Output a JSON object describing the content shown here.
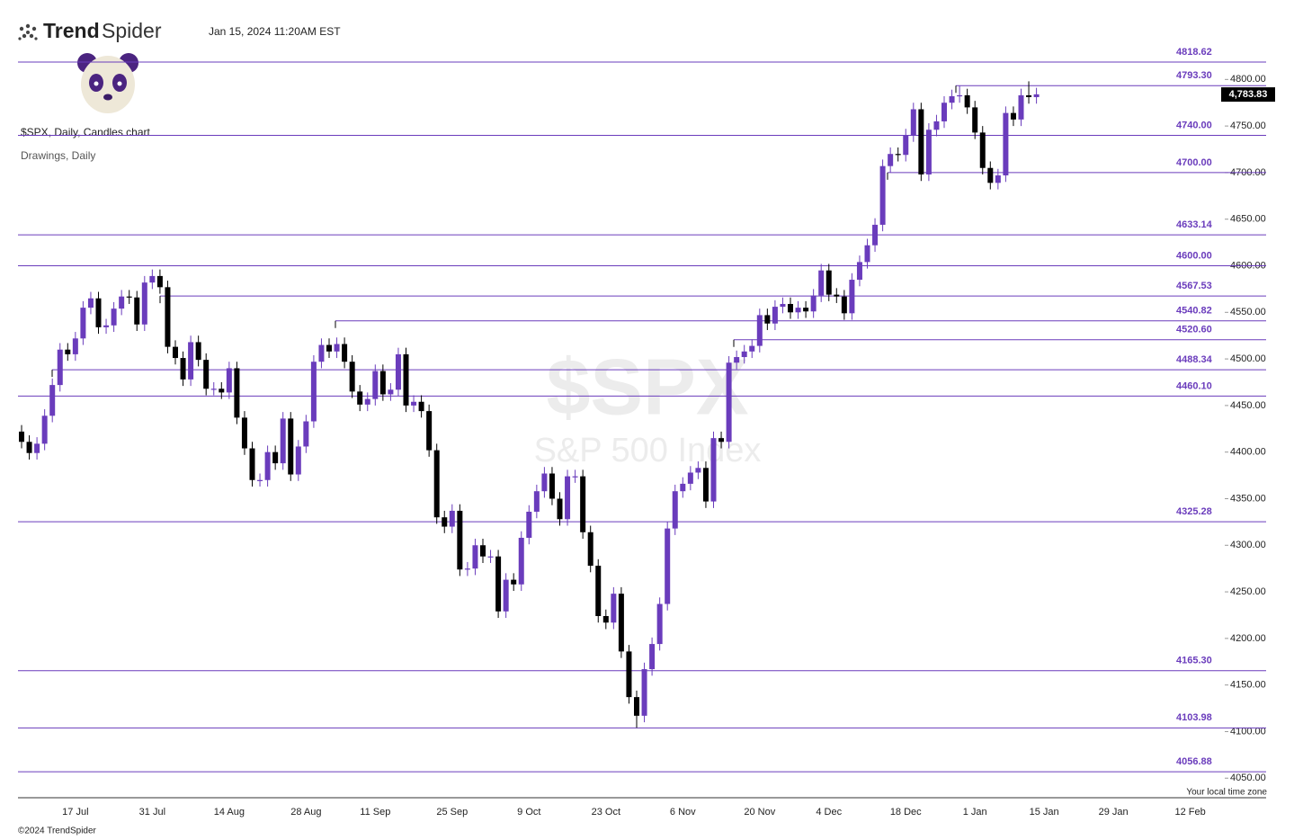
{
  "header": {
    "logo_bold": "Trend",
    "logo_light": "Spider",
    "timestamp": "Jan 15, 2024 11:20AM EST"
  },
  "chart_data": {
    "type": "candlestick",
    "title": "$SPX, Daily, Candles chart",
    "subtitle": "Drawings, Daily",
    "watermark_symbol": "$SPX",
    "watermark_name": "S&P 500 Index",
    "timezone_note": "Your local time zone",
    "up_color": "#6a3cbc",
    "down_color": "#000000",
    "level_color": "#6a3cbc",
    "categories": [
      null,
      null,
      null,
      null,
      null,
      null,
      null,
      "17 Jul",
      null,
      null,
      null,
      null,
      null,
      null,
      null,
      null,
      null,
      "31 Jul",
      null,
      null,
      null,
      null,
      null,
      null,
      null,
      null,
      null,
      "14 Aug",
      null,
      null,
      null,
      null,
      null,
      null,
      null,
      null,
      null,
      "28 Aug",
      null,
      null,
      null,
      null,
      null,
      null,
      null,
      null,
      "11 Sep",
      null,
      null,
      null,
      null,
      null,
      null,
      null,
      null,
      null,
      "25 Sep",
      null,
      null,
      null,
      null,
      null,
      null,
      null,
      null,
      null,
      "9 Oct",
      null,
      null,
      null,
      null,
      null,
      null,
      null,
      null,
      null,
      "23 Oct",
      null,
      null,
      null,
      null,
      null,
      null,
      null,
      null,
      null,
      "6 Nov",
      null,
      null,
      null,
      null,
      null,
      null,
      null,
      null,
      null,
      "20 Nov",
      null,
      null,
      null,
      null,
      null,
      null,
      null,
      null,
      "4 Dec",
      null,
      null,
      null,
      null,
      null,
      null,
      null,
      null,
      null,
      "18 Dec",
      null,
      null,
      null,
      null,
      null,
      null,
      null,
      null,
      "1 Jan",
      null,
      null,
      null,
      null,
      null,
      null,
      null,
      null,
      "15 Jan",
      null,
      null,
      null,
      null,
      null,
      null,
      null,
      null,
      "29 Jan",
      null,
      null,
      null,
      null,
      null,
      null,
      null,
      null,
      null,
      "12 Feb",
      null,
      null,
      null,
      null,
      null
    ],
    "open": [
      4422,
      4411,
      4399,
      4409,
      4439,
      4472,
      4510,
      4505,
      4522,
      4555,
      4565,
      4534,
      4536,
      4554,
      4567,
      4566,
      4537,
      4582,
      4589,
      4577,
      4513,
      4501,
      4478,
      4518,
      4499,
      4468,
      4468,
      4464,
      4490,
      4437,
      4404,
      4370,
      4370,
      4400,
      4388,
      4436,
      4376,
      4406,
      4433,
      4497,
      4515,
      4508,
      4516,
      4497,
      4465,
      4451,
      4457,
      4487,
      4462,
      4467,
      4505,
      4450,
      4454,
      4444,
      4402,
      4330,
      4320,
      4337,
      4274,
      4275,
      4300,
      4288,
      4288,
      4229,
      4263,
      4258,
      4308,
      4336,
      4358,
      4377,
      4350,
      4328,
      4374,
      4374,
      4314,
      4278,
      4224,
      4217,
      4248,
      4186,
      4137,
      4117,
      4167,
      4194,
      4237,
      4318,
      4358,
      4366,
      4378,
      4383,
      4347,
      4415,
      4411,
      4496,
      4502,
      4508,
      4514,
      4547,
      4538,
      4556,
      4559,
      4550,
      4555,
      4551,
      4568,
      4595,
      4569,
      4567,
      4549,
      4585,
      4604,
      4622,
      4644,
      4707,
      4720,
      4719,
      4740,
      4768,
      4698,
      4746,
      4755,
      4775,
      4782,
      4783,
      4770,
      4743,
      4705,
      4689,
      4697,
      4764,
      4757,
      4783,
      4781,
      null,
      null,
      null,
      null,
      null,
      null,
      null,
      null,
      null,
      null,
      null,
      null,
      null,
      null,
      null,
      null,
      null,
      null,
      null,
      null,
      null,
      null,
      null,
      null,
      null
    ],
    "high": [
      4429,
      4418,
      4416,
      4446,
      4479,
      4517,
      4517,
      4529,
      4562,
      4572,
      4572,
      4543,
      4561,
      4574,
      4574,
      4573,
      4589,
      4596,
      4596,
      4584,
      4520,
      4508,
      4525,
      4525,
      4506,
      4475,
      4475,
      4497,
      4497,
      4444,
      4411,
      4377,
      4407,
      4407,
      4443,
      4443,
      4413,
      4440,
      4504,
      4522,
      4522,
      4523,
      4523,
      4504,
      4472,
      4464,
      4494,
      4494,
      4474,
      4512,
      4512,
      4461,
      4461,
      4451,
      4409,
      4337,
      4344,
      4344,
      4282,
      4307,
      4307,
      4295,
      4295,
      4270,
      4270,
      4315,
      4343,
      4365,
      4384,
      4384,
      4357,
      4381,
      4381,
      4381,
      4321,
      4285,
      4231,
      4255,
      4255,
      4193,
      4144,
      4174,
      4201,
      4244,
      4325,
      4365,
      4373,
      4385,
      4390,
      4390,
      4422,
      4422,
      4503,
      4509,
      4515,
      4521,
      4554,
      4554,
      4563,
      4566,
      4566,
      4562,
      4562,
      4575,
      4602,
      4602,
      4576,
      4574,
      4592,
      4611,
      4629,
      4651,
      4714,
      4727,
      4727,
      4747,
      4775,
      4775,
      4753,
      4762,
      4782,
      4789,
      4793,
      4790,
      4777,
      4750,
      4712,
      4704,
      4771,
      4771,
      4790,
      4798,
      4791,
      null,
      null,
      null,
      null,
      null,
      null,
      null,
      null,
      null,
      null,
      null,
      null,
      null,
      null,
      null,
      null,
      null,
      null,
      null,
      null,
      null,
      null,
      null,
      null,
      null
    ],
    "low": [
      4404,
      4392,
      4392,
      4402,
      4432,
      4465,
      4498,
      4498,
      4515,
      4548,
      4527,
      4527,
      4529,
      4547,
      4559,
      4530,
      4530,
      4575,
      4570,
      4506,
      4494,
      4471,
      4471,
      4492,
      4461,
      4461,
      4457,
      4457,
      4430,
      4397,
      4363,
      4363,
      4363,
      4381,
      4381,
      4369,
      4369,
      4399,
      4426,
      4490,
      4501,
      4501,
      4490,
      4458,
      4444,
      4444,
      4450,
      4455,
      4455,
      4460,
      4443,
      4443,
      4437,
      4395,
      4323,
      4313,
      4313,
      4267,
      4267,
      4268,
      4281,
      4281,
      4222,
      4222,
      4251,
      4251,
      4301,
      4329,
      4351,
      4343,
      4321,
      4321,
      4367,
      4307,
      4271,
      4217,
      4210,
      4210,
      4179,
      4130,
      4104,
      4110,
      4160,
      4187,
      4230,
      4311,
      4351,
      4359,
      4371,
      4340,
      4340,
      4404,
      4404,
      4489,
      4495,
      4501,
      4507,
      4531,
      4531,
      4549,
      4543,
      4543,
      4544,
      4544,
      4561,
      4562,
      4560,
      4542,
      4542,
      4578,
      4597,
      4615,
      4637,
      4700,
      4712,
      4712,
      4733,
      4691,
      4691,
      4739,
      4748,
      4768,
      4775,
      4763,
      4736,
      4698,
      4682,
      4682,
      4690,
      4750,
      4750,
      4774,
      4774,
      null,
      null,
      null,
      null,
      null,
      null,
      null,
      null,
      null,
      null,
      null,
      null,
      null,
      null,
      null,
      null,
      null,
      null,
      null,
      null,
      null,
      null,
      null,
      null,
      null
    ],
    "close": [
      4411,
      4399,
      4409,
      4439,
      4472,
      4510,
      4505,
      4522,
      4555,
      4565,
      4534,
      4536,
      4554,
      4567,
      4566,
      4537,
      4582,
      4589,
      4577,
      4513,
      4501,
      4478,
      4518,
      4499,
      4468,
      4468,
      4464,
      4490,
      4437,
      4404,
      4370,
      4370,
      4400,
      4388,
      4436,
      4376,
      4406,
      4433,
      4497,
      4515,
      4508,
      4516,
      4497,
      4465,
      4451,
      4457,
      4487,
      4462,
      4467,
      4505,
      4450,
      4454,
      4444,
      4402,
      4330,
      4320,
      4337,
      4274,
      4275,
      4300,
      4288,
      4288,
      4229,
      4263,
      4258,
      4308,
      4336,
      4358,
      4377,
      4350,
      4328,
      4374,
      4374,
      4314,
      4278,
      4224,
      4217,
      4248,
      4186,
      4137,
      4117,
      4167,
      4194,
      4237,
      4318,
      4358,
      4366,
      4378,
      4383,
      4347,
      4415,
      4411,
      4496,
      4502,
      4508,
      4514,
      4547,
      4538,
      4556,
      4559,
      4550,
      4555,
      4551,
      4568,
      4595,
      4569,
      4567,
      4549,
      4585,
      4604,
      4622,
      4644,
      4707,
      4720,
      4719,
      4740,
      4768,
      4698,
      4746,
      4755,
      4775,
      4782,
      4783,
      4770,
      4743,
      4705,
      4689,
      4697,
      4764,
      4757,
      4783,
      4781,
      4784,
      null,
      null,
      null,
      null,
      null,
      null,
      null,
      null,
      null,
      null,
      null,
      null,
      null,
      null,
      null,
      null,
      null,
      null,
      null,
      null,
      null,
      null,
      null,
      null,
      null
    ],
    "ylim": [
      4029,
      4837
    ],
    "yticks": [
      {
        "value": 4050,
        "label": "4050.00"
      },
      {
        "value": 4100,
        "label": "4100.00"
      },
      {
        "value": 4150,
        "label": "4150.00"
      },
      {
        "value": 4200,
        "label": "4200.00"
      },
      {
        "value": 4250,
        "label": "4250.00"
      },
      {
        "value": 4300,
        "label": "4300.00"
      },
      {
        "value": 4350,
        "label": "4350.00"
      },
      {
        "value": 4400,
        "label": "4400.00"
      },
      {
        "value": 4450,
        "label": "4450.00"
      },
      {
        "value": 4500,
        "label": "4500.00"
      },
      {
        "value": 4550,
        "label": "4550.00"
      },
      {
        "value": 4600,
        "label": "4600.00"
      },
      {
        "value": 4650,
        "label": "4650.00"
      },
      {
        "value": 4700,
        "label": "4700.00"
      },
      {
        "value": 4750,
        "label": "4750.00"
      },
      {
        "value": 4800,
        "label": "4800.00"
      }
    ],
    "levels": [
      4818.62,
      {
        "value": 4793.3,
        "label": "4793.30"
      },
      {
        "value": 4740,
        "label": "4740.00"
      },
      {
        "value": 4700,
        "label": "4700.00"
      },
      4633.14,
      {
        "value": 4600,
        "label": "4600.00"
      },
      4567.53,
      4540.82,
      {
        "value": 4520.6,
        "label": "4520.60"
      },
      4488.34,
      {
        "value": 4460.1,
        "label": "4460.10"
      },
      4325.28,
      {
        "value": 4165.3,
        "label": "4165.30"
      },
      4103.98,
      4056.88
    ],
    "last_price": {
      "value": 4783.83,
      "label": "4,783.83"
    }
  },
  "footer": {
    "copyright": "©2024 TrendSpider"
  }
}
